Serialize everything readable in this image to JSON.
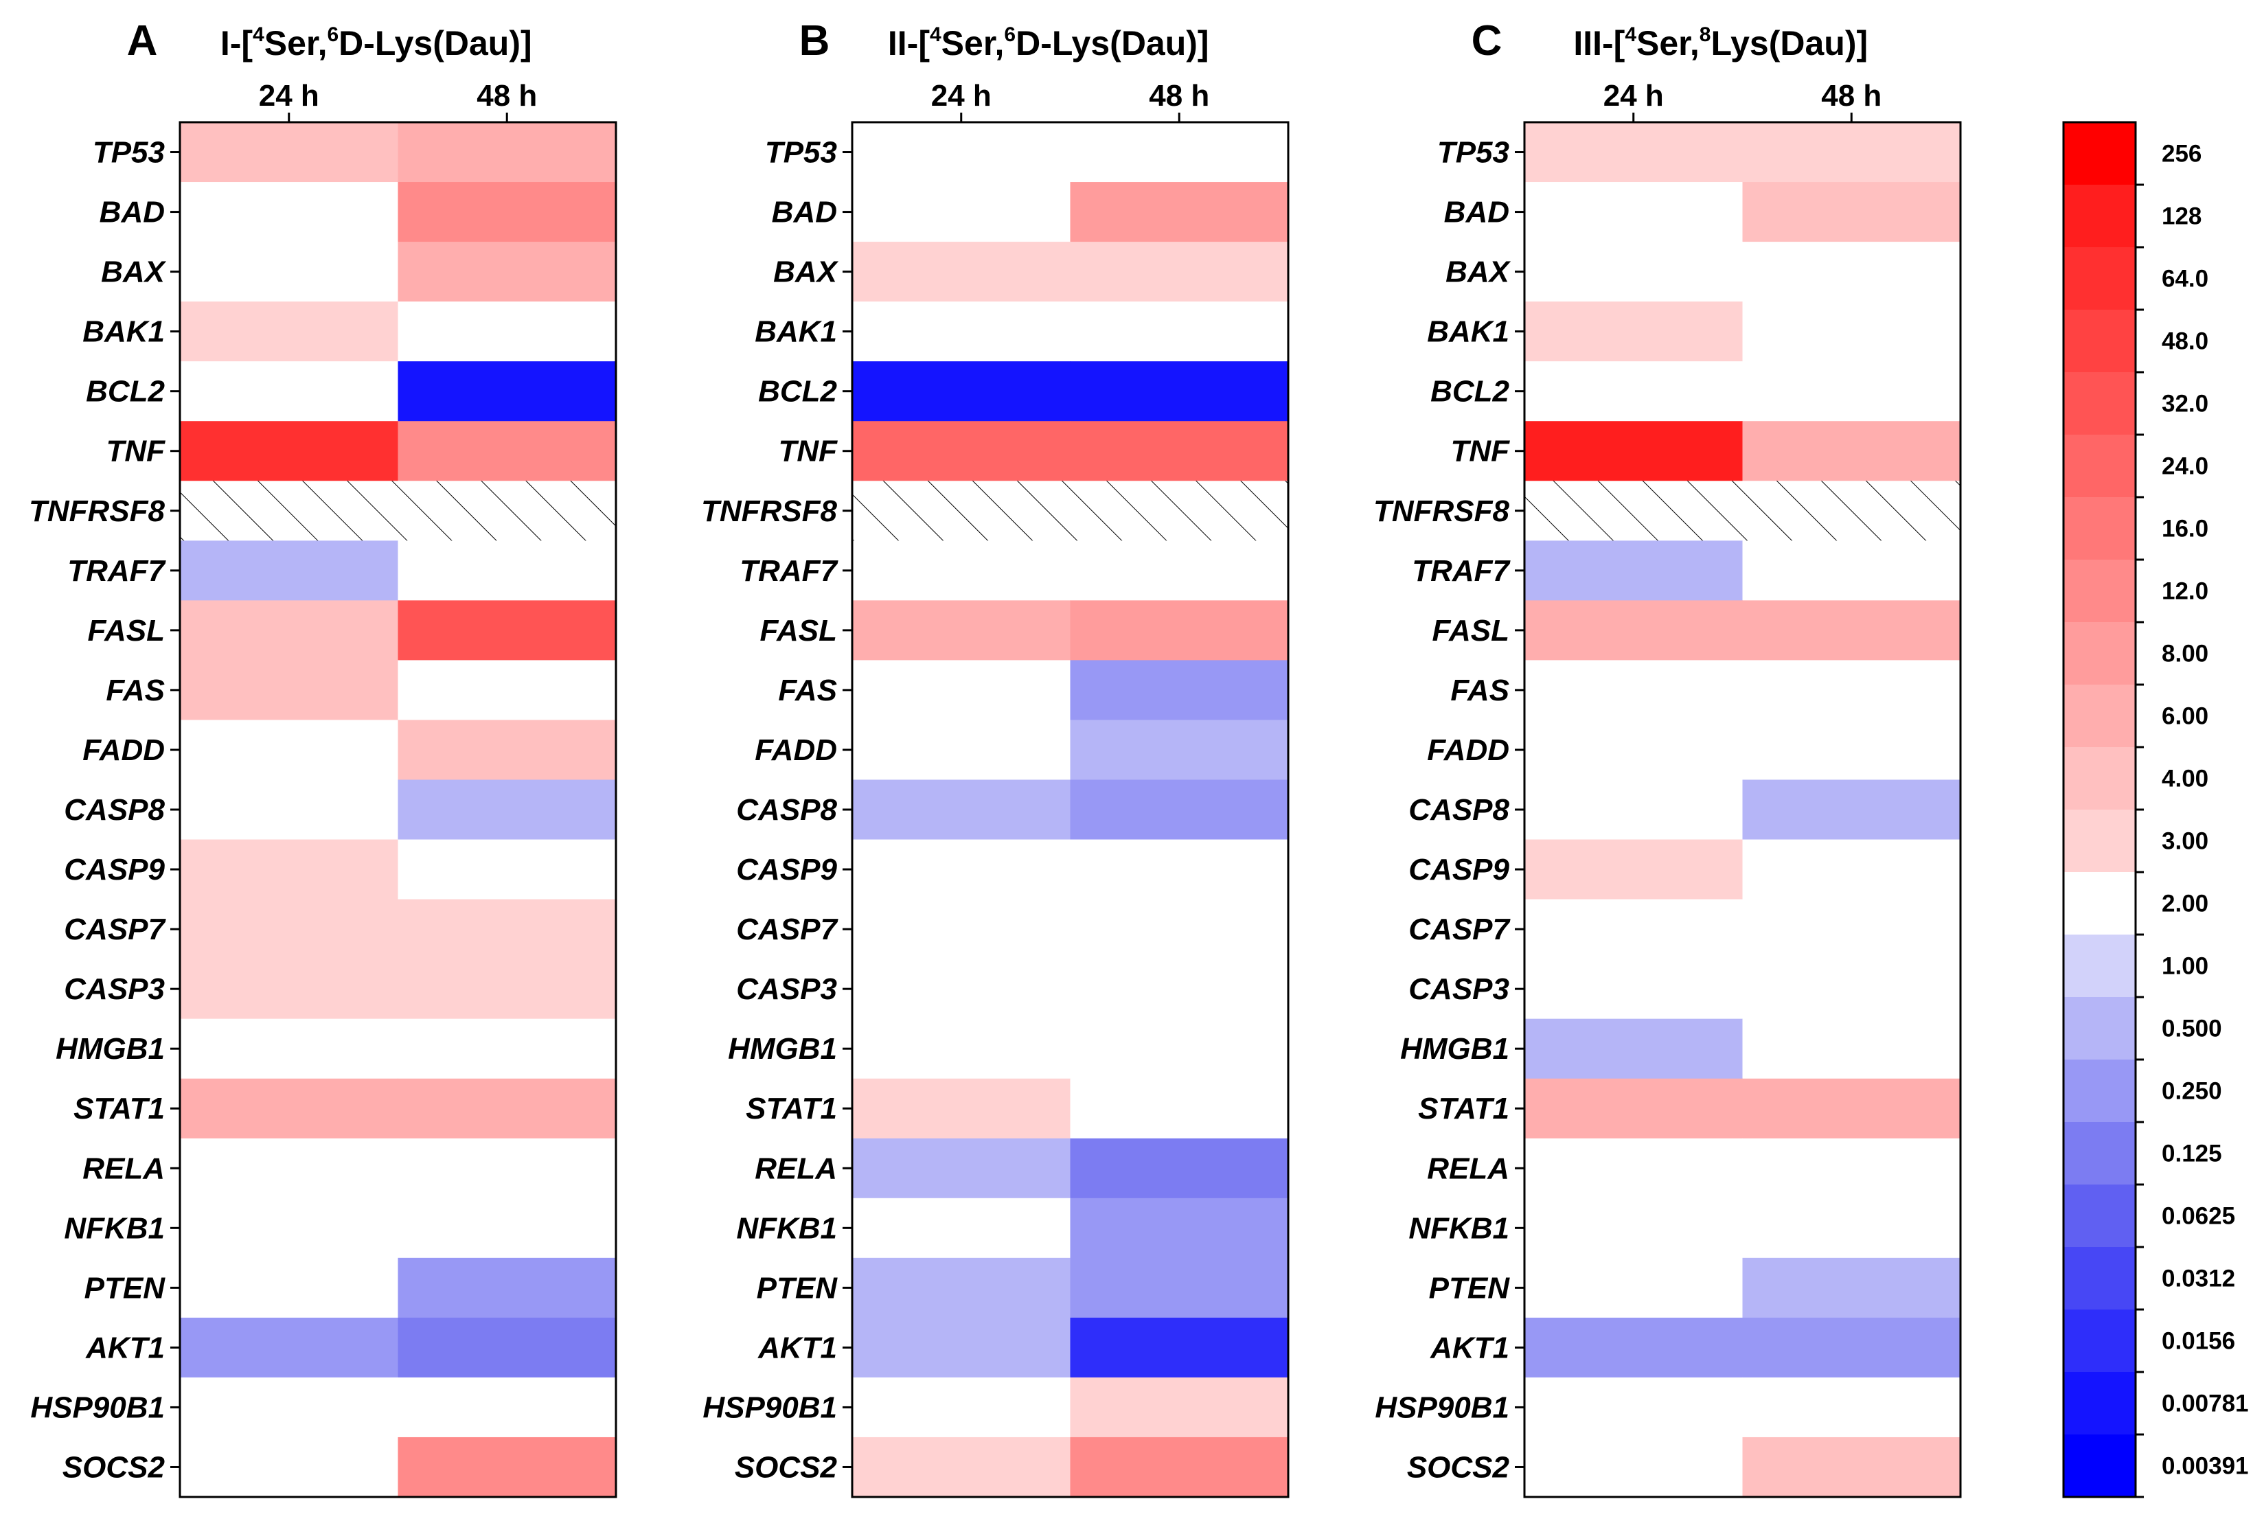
{
  "chart_data": {
    "type": "heatmap",
    "colors": {
      "na_hatch": "#000000",
      "scale": [
        "#0000ff",
        "#1414ff",
        "#2e2efa",
        "#4747f5",
        "#6060f2",
        "#7c7cf2",
        "#9898f5",
        "#b5b5f7",
        "#d2d2fa",
        "#ffffff",
        "#ffd2d2",
        "#ffc0c0",
        "#ffaeae",
        "#ff9c9c",
        "#ff8a8a",
        "#ff7878",
        "#ff6666",
        "#ff5454",
        "#ff4242",
        "#ff3030",
        "#ff1e1e",
        "#ff0000"
      ]
    },
    "rows": [
      "TP53",
      "BAD",
      "BAX",
      "BAK1",
      "BCL2",
      "TNF",
      "TNFRSF8",
      "TRAF7",
      "FASL",
      "FAS",
      "FADD",
      "CASP8",
      "CASP9",
      "CASP7",
      "CASP3",
      "HMGB1",
      "STAT1",
      "RELA",
      "NFKB1",
      "PTEN",
      "AKT1",
      "HSP90B1",
      "SOCS2"
    ],
    "panels": [
      {
        "letter": "A",
        "title_parts": [
          "I-[",
          "4",
          "Ser,",
          "6",
          "D-Lys(Dau)]"
        ],
        "columns": [
          "24 h",
          "48 h"
        ],
        "values": [
          [
            3.0,
            4.0
          ],
          [
            1.0,
            8.0
          ],
          [
            1.0,
            4.0
          ],
          [
            2.5,
            1.0
          ],
          [
            1.0,
            0.004
          ],
          [
            48.0,
            8.0
          ],
          [
            null,
            null
          ],
          [
            0.4,
            1.0
          ],
          [
            3.0,
            24.0
          ],
          [
            3.0,
            1.0
          ],
          [
            1.0,
            3.0
          ],
          [
            1.0,
            0.4
          ],
          [
            2.5,
            1.0
          ],
          [
            2.5,
            2.5
          ],
          [
            2.5,
            2.5
          ],
          [
            1.0,
            1.0
          ],
          [
            4.0,
            4.0
          ],
          [
            1.0,
            1.0
          ],
          [
            1.0,
            1.0
          ],
          [
            1.0,
            0.2
          ],
          [
            0.2,
            0.1
          ],
          [
            1.0,
            1.0
          ],
          [
            1.0,
            8.0
          ]
        ]
      },
      {
        "letter": "B",
        "title_parts": [
          "II-[",
          "4",
          "Ser,",
          "6",
          "D-Lys(Dau)]"
        ],
        "columns": [
          "24 h",
          "48 h"
        ],
        "values": [
          [
            1.0,
            1.0
          ],
          [
            1.0,
            6.0
          ],
          [
            2.5,
            2.5
          ],
          [
            1.0,
            1.0
          ],
          [
            0.004,
            0.004
          ],
          [
            16.0,
            16.0
          ],
          [
            null,
            null
          ],
          [
            1.0,
            1.0
          ],
          [
            4.0,
            6.0
          ],
          [
            1.0,
            0.2
          ],
          [
            1.0,
            0.4
          ],
          [
            0.4,
            0.2
          ],
          [
            1.0,
            1.0
          ],
          [
            1.0,
            1.0
          ],
          [
            1.0,
            1.0
          ],
          [
            1.0,
            1.0
          ],
          [
            2.5,
            1.0
          ],
          [
            0.4,
            0.1
          ],
          [
            1.0,
            0.2
          ],
          [
            0.4,
            0.2
          ],
          [
            0.4,
            0.01
          ],
          [
            1.0,
            2.5
          ],
          [
            2.5,
            8.0
          ]
        ]
      },
      {
        "letter": "C",
        "title_parts": [
          "III-[",
          "4",
          "Ser,",
          "8",
          "Lys(Dau)]"
        ],
        "columns": [
          "24 h",
          "48 h"
        ],
        "values": [
          [
            2.5,
            2.5
          ],
          [
            1.0,
            3.0
          ],
          [
            1.0,
            1.0
          ],
          [
            2.5,
            1.0
          ],
          [
            1.0,
            1.0
          ],
          [
            64.0,
            4.0
          ],
          [
            null,
            null
          ],
          [
            0.4,
            1.0
          ],
          [
            4.0,
            4.0
          ],
          [
            1.0,
            1.0
          ],
          [
            1.0,
            1.0
          ],
          [
            1.0,
            0.4
          ],
          [
            2.5,
            1.0
          ],
          [
            1.0,
            1.0
          ],
          [
            1.0,
            1.0
          ],
          [
            0.4,
            1.0
          ],
          [
            4.0,
            4.0
          ],
          [
            1.0,
            1.0
          ],
          [
            1.0,
            1.0
          ],
          [
            1.0,
            0.4
          ],
          [
            0.2,
            0.2
          ],
          [
            1.0,
            1.0
          ],
          [
            1.0,
            3.0
          ]
        ]
      }
    ],
    "colorbar": {
      "tick_labels": [
        "256",
        "128",
        "64.0",
        "48.0",
        "32.0",
        "24.0",
        "16.0",
        "12.0",
        "8.00",
        "6.00",
        "4.00",
        "3.00",
        "2.00",
        "1.00",
        "0.500",
        "0.250",
        "0.125",
        "0.0625",
        "0.0312",
        "0.0156",
        "0.00781",
        "0.00391"
      ],
      "tick_values": [
        256,
        128,
        64,
        48,
        32,
        24,
        16,
        12,
        8,
        6,
        4,
        3,
        2,
        1,
        0.5,
        0.25,
        0.125,
        0.0625,
        0.0312,
        0.0156,
        0.00781,
        0.00391
      ],
      "range": [
        0.002,
        512
      ]
    }
  }
}
